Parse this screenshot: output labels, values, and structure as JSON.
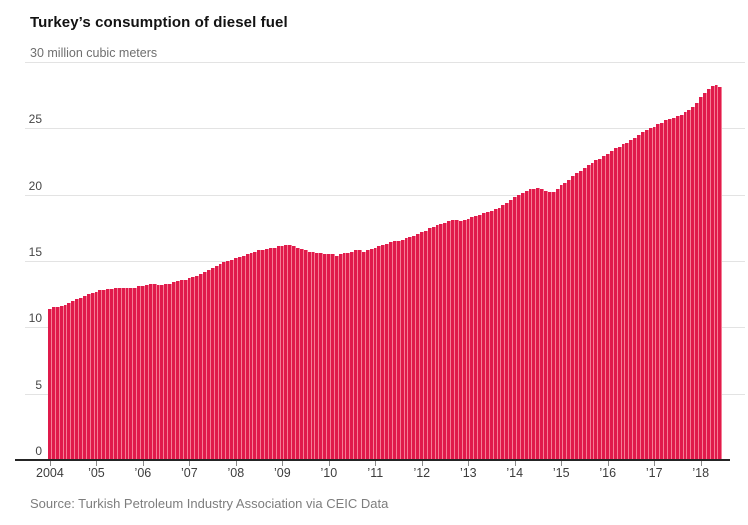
{
  "header": {
    "title": "Turkey’s consumption of diesel fuel",
    "subtitle": "30 million cubic meters"
  },
  "footer": {
    "source": "Source: Turkish Petroleum Industry Association via CEIC Data"
  },
  "chart_data": {
    "type": "bar",
    "title": "Turkey’s consumption of diesel fuel",
    "ylabel": "30 million cubic meters",
    "frequency": "monthly",
    "start": "2004-01",
    "end": "2018-06",
    "ylim": [
      0,
      30
    ],
    "y_ticks": [
      0,
      5,
      10,
      15,
      20,
      25
    ],
    "top_tick_value": 30,
    "grid": true,
    "legend": "none",
    "bar_color": "#e01a4b",
    "bar_gap_color": "#f57d95",
    "x_tick_labels": [
      "2004",
      "’05",
      "’06",
      "’07",
      "’08",
      "’09",
      "’10",
      "’11",
      "’12",
      "’13",
      "’14",
      "’15",
      "’16",
      "’17",
      "’18"
    ],
    "values": [
      11.4,
      11.5,
      11.5,
      11.6,
      11.7,
      11.8,
      12.0,
      12.1,
      12.2,
      12.4,
      12.5,
      12.6,
      12.7,
      12.8,
      12.8,
      12.9,
      12.9,
      13.0,
      13.0,
      13.0,
      13.0,
      13.0,
      13.0,
      13.1,
      13.1,
      13.2,
      13.3,
      13.3,
      13.2,
      13.2,
      13.3,
      13.3,
      13.4,
      13.5,
      13.6,
      13.6,
      13.7,
      13.8,
      13.9,
      14.0,
      14.2,
      14.3,
      14.5,
      14.6,
      14.8,
      14.9,
      15.0,
      15.1,
      15.2,
      15.3,
      15.4,
      15.5,
      15.6,
      15.7,
      15.8,
      15.8,
      15.9,
      16.0,
      16.0,
      16.1,
      16.1,
      16.2,
      16.2,
      16.1,
      16.0,
      15.9,
      15.8,
      15.7,
      15.7,
      15.6,
      15.6,
      15.5,
      15.5,
      15.5,
      15.4,
      15.5,
      15.6,
      15.6,
      15.7,
      15.8,
      15.8,
      15.7,
      15.8,
      15.9,
      16.0,
      16.1,
      16.2,
      16.3,
      16.4,
      16.5,
      16.5,
      16.6,
      16.7,
      16.8,
      16.9,
      17.0,
      17.2,
      17.3,
      17.5,
      17.6,
      17.7,
      17.8,
      17.9,
      18.0,
      18.1,
      18.1,
      18.0,
      18.1,
      18.2,
      18.3,
      18.4,
      18.5,
      18.6,
      18.7,
      18.8,
      18.9,
      19.0,
      19.2,
      19.4,
      19.6,
      19.8,
      20.0,
      20.1,
      20.3,
      20.4,
      20.4,
      20.5,
      20.4,
      20.3,
      20.2,
      20.2,
      20.4,
      20.7,
      20.9,
      21.1,
      21.4,
      21.6,
      21.8,
      22.0,
      22.2,
      22.4,
      22.6,
      22.7,
      22.9,
      23.1,
      23.3,
      23.5,
      23.6,
      23.8,
      23.9,
      24.1,
      24.3,
      24.5,
      24.7,
      24.9,
      25.0,
      25.1,
      25.3,
      25.4,
      25.6,
      25.7,
      25.8,
      25.9,
      26.0,
      26.2,
      26.4,
      26.6,
      26.9,
      27.4,
      27.7,
      28.0,
      28.2,
      28.3,
      28.1
    ],
    "source": "Source: Turkish Petroleum Industry Association via CEIC Data"
  }
}
